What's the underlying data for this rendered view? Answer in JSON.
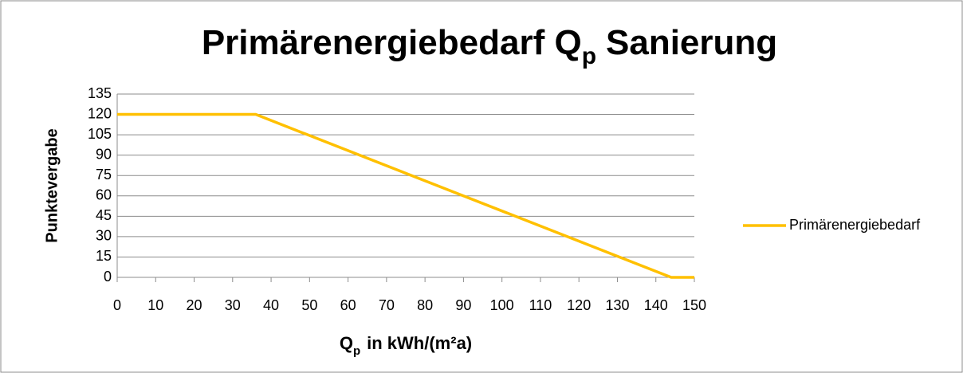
{
  "chart_data": {
    "type": "line",
    "title": [
      "Primärenergiebedarf Q",
      "p",
      "Sanierung"
    ],
    "xlabel": [
      "Q",
      "p",
      "in kWh/(m²a)"
    ],
    "ylabel": "Punktevergabe",
    "x": [
      0,
      36,
      144,
      150
    ],
    "series": [
      {
        "name": "Primärenergiebedarf",
        "color": "#ffc000",
        "values": [
          120,
          120,
          0,
          0
        ]
      }
    ],
    "xlim": [
      0,
      150
    ],
    "xticks": [
      0,
      10,
      20,
      30,
      40,
      50,
      60,
      70,
      80,
      90,
      100,
      110,
      120,
      130,
      140,
      150
    ],
    "ylim": [
      0,
      135
    ],
    "yticks": [
      0,
      15,
      30,
      45,
      60,
      75,
      90,
      105,
      120,
      135
    ],
    "grid": true,
    "legend": "right"
  }
}
